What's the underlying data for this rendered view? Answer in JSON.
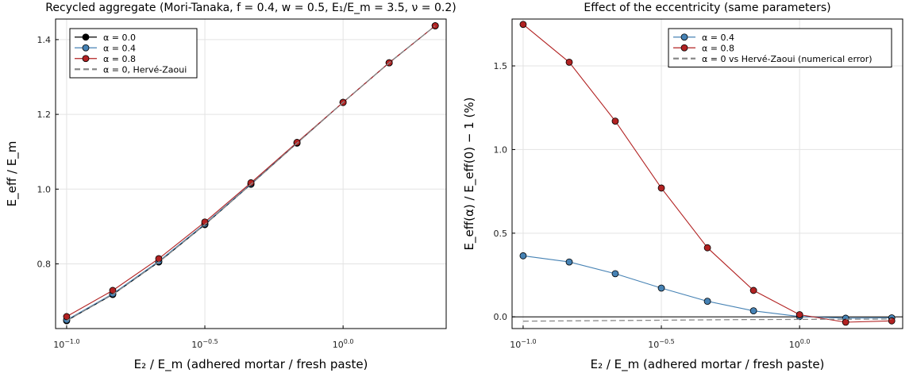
{
  "chart_data": [
    {
      "type": "line",
      "title": "Recycled aggregate (Mori-Tanaka, f = 0.4, w = 0.5, E₁/E_m = 3.5, ν = 0.2)",
      "xlabel": "E₂ / E_m   (adhered mortar / fresh paste)",
      "ylabel": "E_eff / E_m",
      "x_scale": "log10",
      "x": [
        0.1,
        0.1468,
        0.2154,
        0.3162,
        0.4642,
        0.6813,
        1.0,
        1.4678,
        2.1544
      ],
      "xlim": [
        0.0912,
        2.36
      ],
      "ylim": [
        0.627,
        1.455
      ],
      "xticks": [
        {
          "value": 0.1,
          "label": "10",
          "exp": "−1.0"
        },
        {
          "value": 0.3162,
          "label": "10",
          "exp": "−0.5"
        },
        {
          "value": 1.0,
          "label": "10",
          "exp": "0.0"
        }
      ],
      "yticks": [
        {
          "value": 0.8,
          "label": "0.8"
        },
        {
          "value": 1.0,
          "label": "1.0"
        },
        {
          "value": 1.2,
          "label": "1.2"
        },
        {
          "value": 1.4,
          "label": "1.4"
        }
      ],
      "legend_position": "top-left",
      "grid": true,
      "series": [
        {
          "name": "α = 0.0",
          "color": "#000000",
          "marker": "circle",
          "line": "solid",
          "values": [
            0.648,
            0.718,
            0.805,
            0.905,
            1.013,
            1.123,
            1.232,
            1.338,
            1.437
          ]
        },
        {
          "name": "α = 0.4",
          "color": "#4682b4",
          "marker": "circle",
          "line": "solid",
          "values": [
            0.65,
            0.72,
            0.807,
            0.907,
            1.014,
            1.124,
            1.232,
            1.338,
            1.437
          ]
        },
        {
          "name": "α = 0.8",
          "color": "#b22222",
          "marker": "circle",
          "line": "solid",
          "values": [
            0.659,
            0.729,
            0.814,
            0.912,
            1.017,
            1.125,
            1.232,
            1.338,
            1.437
          ]
        },
        {
          "name": "α = 0, Hervé-Zaoui",
          "color": "#888888",
          "marker": "none",
          "line": "dashed",
          "values": [
            0.648,
            0.718,
            0.805,
            0.905,
            1.013,
            1.123,
            1.232,
            1.338,
            1.437
          ]
        }
      ]
    },
    {
      "type": "line",
      "title": "Effect of the eccentricity (same parameters)",
      "xlabel": "E₂ / E_m   (adhered mortar / fresh paste)",
      "ylabel": "E_eff(α) / E_eff(0) − 1   (%)",
      "x_scale": "log10",
      "x": [
        0.1,
        0.1468,
        0.2154,
        0.3162,
        0.4642,
        0.6813,
        1.0,
        1.4678,
        2.1544
      ],
      "xlim": [
        0.0912,
        2.36
      ],
      "ylim": [
        -0.07,
        1.78
      ],
      "xticks": [
        {
          "value": 0.1,
          "label": "10",
          "exp": "−1.0"
        },
        {
          "value": 0.3162,
          "label": "10",
          "exp": "−0.5"
        },
        {
          "value": 1.0,
          "label": "10",
          "exp": "0.0"
        }
      ],
      "yticks": [
        {
          "value": 0.0,
          "label": "0.0"
        },
        {
          "value": 0.5,
          "label": "0.5"
        },
        {
          "value": 1.0,
          "label": "1.0"
        },
        {
          "value": 1.5,
          "label": "1.5"
        }
      ],
      "hline": 0,
      "legend_position": "top-right",
      "grid": true,
      "series": [
        {
          "name": "α = 0.4",
          "color": "#4682b4",
          "marker": "circle",
          "line": "solid",
          "values": [
            0.365,
            0.328,
            0.258,
            0.172,
            0.093,
            0.036,
            0.002,
            -0.008,
            -0.006
          ]
        },
        {
          "name": "α = 0.8",
          "color": "#b22222",
          "marker": "circle",
          "line": "solid",
          "values": [
            1.748,
            1.522,
            1.17,
            0.77,
            0.413,
            0.158,
            0.013,
            -0.032,
            -0.024
          ]
        },
        {
          "name": "α = 0 vs Hervé-Zaoui (numerical error)",
          "color": "#888888",
          "marker": "none",
          "line": "dashed",
          "values": [
            -0.026,
            -0.024,
            -0.022,
            -0.02,
            -0.018,
            -0.016,
            -0.015,
            -0.014,
            -0.013
          ]
        }
      ]
    }
  ]
}
